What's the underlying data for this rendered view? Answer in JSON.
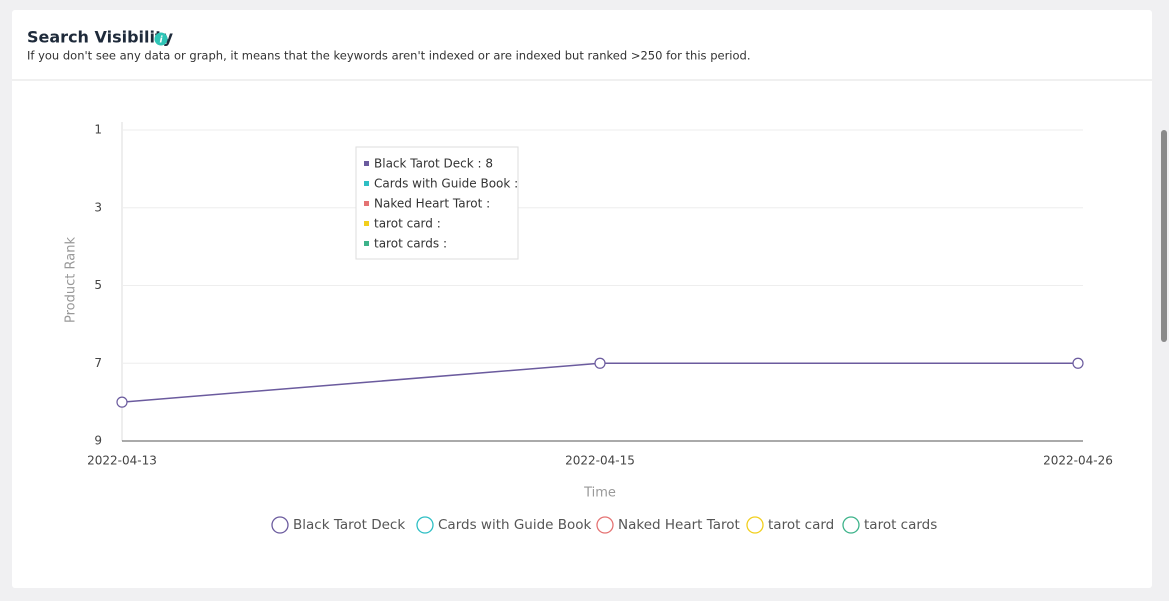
{
  "header": {
    "title": "Search Visibility",
    "subtitle": "If you don't see any data or graph, it means that the keywords aren't indexed or are indexed but ranked >250 for this period."
  },
  "chart_data": {
    "type": "line",
    "x": [
      "2022-04-13",
      "2022-04-15",
      "2022-04-26"
    ],
    "series": [
      {
        "name": "Black Tarot Deck",
        "color": "#6b5b9e",
        "values": [
          8,
          7,
          7
        ]
      },
      {
        "name": "Cards with Guide Book",
        "color": "#2ebfc4",
        "values": [
          null,
          null,
          null
        ]
      },
      {
        "name": "Naked Heart Tarot",
        "color": "#e57373",
        "values": [
          null,
          null,
          null
        ]
      },
      {
        "name": "tarot card",
        "color": "#f2cf1d",
        "values": [
          null,
          null,
          null
        ]
      },
      {
        "name": "tarot cards",
        "color": "#3db38a",
        "values": [
          null,
          null,
          null
        ]
      }
    ],
    "ylim": [
      1,
      9
    ],
    "yticks": [
      1,
      3,
      5,
      7,
      9
    ],
    "y_inverted": true,
    "grid": true,
    "ylabel": "Product Rank",
    "xlabel": "Time",
    "tooltip": [
      "Black Tarot Deck : 8",
      "Cards with Guide Book :",
      "Naked Heart Tarot :",
      "tarot card :",
      "tarot cards :"
    ]
  }
}
